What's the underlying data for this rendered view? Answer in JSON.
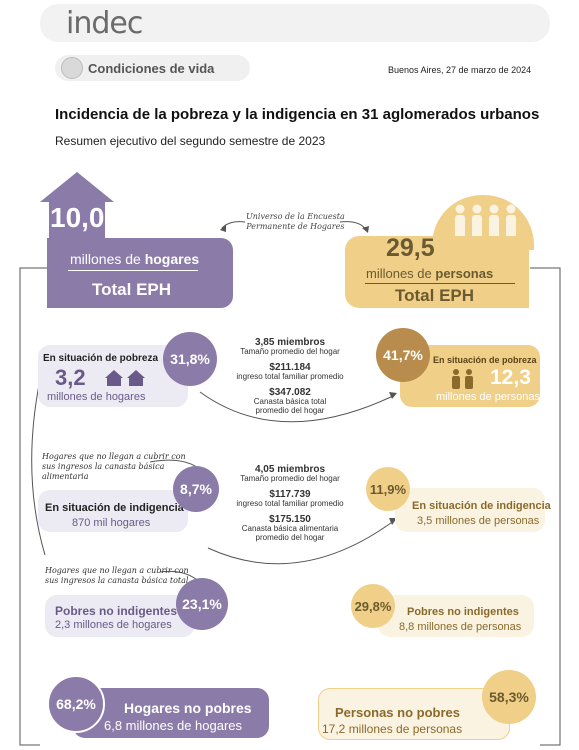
{
  "header": {
    "logo": "indec",
    "section": "Condiciones de vida",
    "date": "Buenos Aires, 27 de marzo de 2024",
    "title": "Incidencia de la pobreza y la indigencia en 31 aglomerados urbanos",
    "subtitle": "Resumen ejecutivo del segundo semestre de 2023"
  },
  "hogares": {
    "value": "10,0",
    "unit_a": "millones de ",
    "unit_b": "hogares",
    "total": "Total EPH"
  },
  "personas": {
    "value": "29,5",
    "unit_a": "millones de ",
    "unit_b": "personas",
    "total": "Total EPH"
  },
  "universo": {
    "line1": "Universo de la Encuesta",
    "line2": "Permanente de Hogares"
  },
  "pobreza": {
    "hog_label": "En situación de pobreza",
    "hog_pct": "31,8%",
    "hog_value": "3,2",
    "hog_unit": "millones de hogares",
    "per_label": "En situación de pobreza",
    "per_pct": "41,7%",
    "per_value": "12,3",
    "per_unit": "millones de personas",
    "miembros": "3,85 miembros",
    "miembros_label": "Tamaño promedio del hogar",
    "ingreso": "$211.184",
    "ingreso_label": "ingreso total familiar promedio",
    "canasta": "$347.082",
    "canasta_label_1": "Canasta básica total",
    "canasta_label_2": "promedio del hogar"
  },
  "note_cba": {
    "line1": "Hogares que no llegan a cubrir con",
    "line2": "sus ingresos la canasta básica",
    "line3": "alimentaria"
  },
  "indigencia": {
    "hog_label": "En situación de indigencia",
    "hog_pct": "8,7%",
    "hog_unit": "870 mil hogares",
    "per_label": "En situación de indigencia",
    "per_pct": "11,9%",
    "per_unit": "3,5 millones de personas",
    "miembros": "4,05 miembros",
    "miembros_label": "Tamaño promedio del hogar",
    "ingreso": "$117.739",
    "ingreso_label": "ingreso total familiar promedio",
    "canasta": "$175.150",
    "canasta_label_1": "Canasta básica alimentaria",
    "canasta_label_2": "promedio del hogar"
  },
  "note_cbt": {
    "line1": "Hogares que no llegan a cubrir con",
    "line2": "sus ingresos la canasta básica total"
  },
  "no_indigentes": {
    "hog_label": "Pobres no indigentes",
    "hog_pct": "23,1%",
    "hog_unit": "2,3 millones de hogares",
    "per_label": "Pobres no indigentes",
    "per_pct": "29,8%",
    "per_unit": "8,8 millones de personas"
  },
  "no_pobres": {
    "hog_label": "Hogares no pobres",
    "hog_pct": "68,2%",
    "hog_unit": "6,8 millones de hogares",
    "per_label": "Personas no pobres",
    "per_pct": "58,3%",
    "per_unit": "17,2 millones de personas"
  },
  "colors": {
    "lavender": "#8b7ba8",
    "lavender_light": "#eceaf2",
    "sand": "#f0cf88",
    "sand_light": "#fbf3e2",
    "brown": "#b88c4c"
  }
}
